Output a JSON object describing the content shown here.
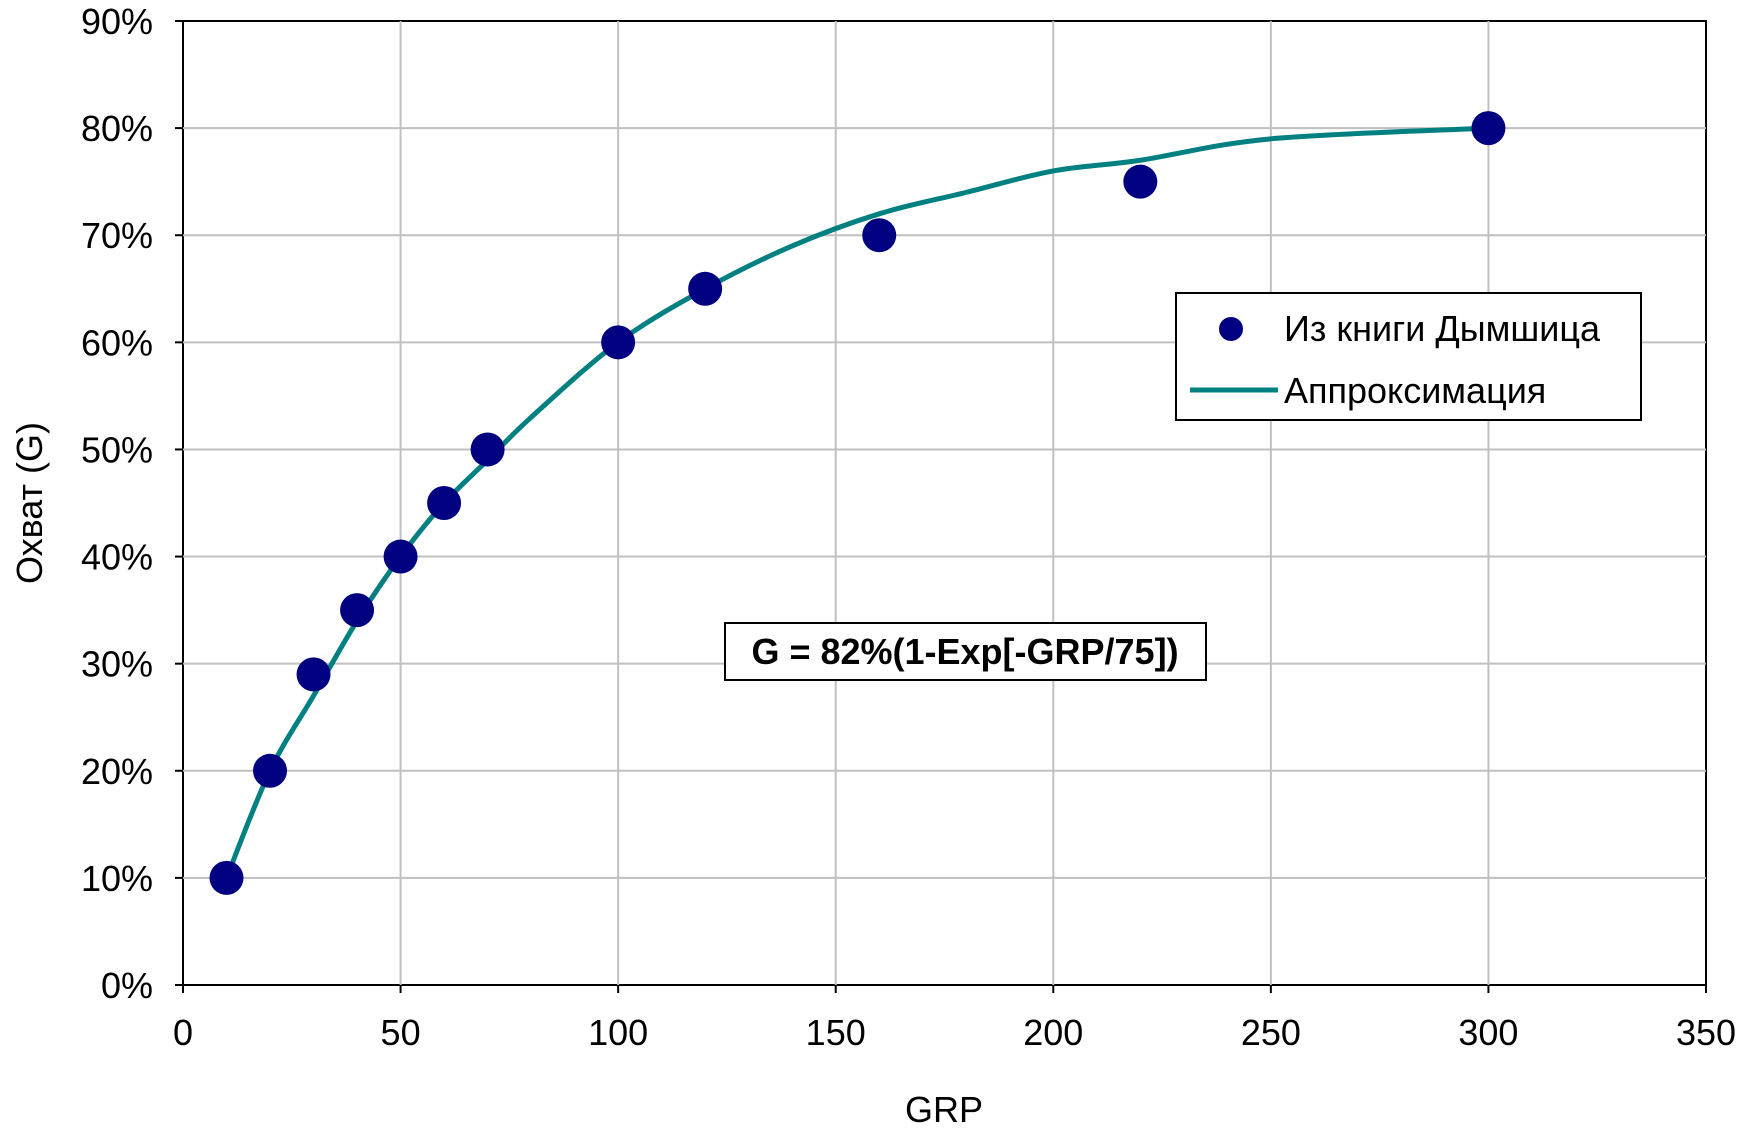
{
  "chart_data": {
    "type": "scatter",
    "xlabel": "GRP",
    "ylabel": "Охват (G)",
    "xlim": [
      0,
      350
    ],
    "ylim": [
      0,
      90
    ],
    "x_ticks": [
      "0",
      "50",
      "100",
      "150",
      "200",
      "250",
      "300",
      "350"
    ],
    "y_ticks": [
      "0%",
      "10%",
      "20%",
      "30%",
      "40%",
      "50%",
      "60%",
      "70%",
      "80%",
      "90%"
    ],
    "grid": true,
    "legend_position": "right",
    "annotation": "G = 82%(1-Exp[-GRP/75])",
    "series": [
      {
        "name": "Из книги Дымшица",
        "kind": "scatter",
        "color": "#000080",
        "x": [
          10,
          20,
          30,
          40,
          50,
          60,
          70,
          100,
          120,
          160,
          220,
          300
        ],
        "y": [
          10,
          20,
          29,
          35,
          40,
          45,
          50,
          60,
          65,
          70,
          75,
          80
        ]
      },
      {
        "name": "Аппроксимация",
        "kind": "line",
        "color": "#008080",
        "x": [
          10,
          20,
          30,
          40,
          50,
          60,
          70,
          80,
          100,
          120,
          140,
          160,
          180,
          200,
          220,
          250,
          300
        ],
        "y": [
          10,
          20,
          27,
          34,
          40,
          45,
          49,
          53,
          60,
          65,
          69,
          72,
          74,
          76,
          77,
          79,
          80
        ]
      }
    ]
  }
}
